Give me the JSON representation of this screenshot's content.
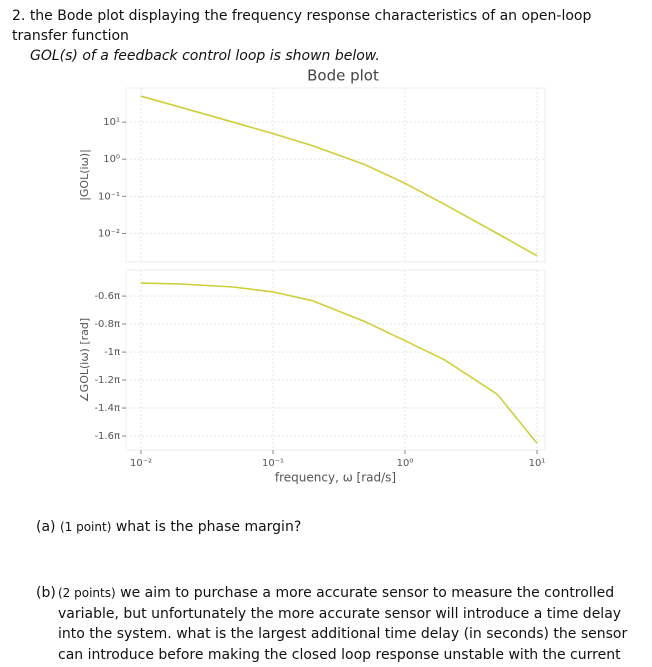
{
  "question": {
    "number": "2.",
    "text": "the Bode plot displaying the frequency response characteristics of an open-loop transfer function",
    "text2": "GOL(s) of a feedback control loop is shown below."
  },
  "chart_data": [
    {
      "type": "line",
      "title": "Bode plot",
      "ylabel": "|GOL(iω)|",
      "xlog": true,
      "ylog": true,
      "grid": true,
      "color": "#cfcf3a",
      "x": [
        0.01,
        0.02,
        0.05,
        0.1,
        0.2,
        0.5,
        1,
        2,
        5,
        10
      ],
      "values": [
        50.0,
        25.0,
        9.95,
        4.9,
        2.32,
        0.707,
        0.224,
        0.0606,
        0.00995,
        0.0025
      ],
      "xlim": [
        0.0077,
        11.5
      ],
      "ylim": [
        0.0017,
        83
      ],
      "yticks": [
        {
          "value": 10,
          "label": "10¹"
        },
        {
          "value": 1,
          "label": "10⁰"
        },
        {
          "value": 0.1,
          "label": "10⁻¹"
        },
        {
          "value": 0.01,
          "label": "10⁻²"
        }
      ]
    },
    {
      "type": "line",
      "ylabel": "∠GOL(iω) [rad]",
      "xlabel": "frequency, ω [rad/s]",
      "xlog": true,
      "grid": true,
      "color": "#cfcf3a",
      "x": [
        0.01,
        0.02,
        0.05,
        0.1,
        0.2,
        0.5,
        1,
        2,
        5,
        10
      ],
      "values": [
        -1.593,
        -1.615,
        -1.681,
        -1.791,
        -1.992,
        -2.46,
        -2.887,
        -3.318,
        -4.09,
        -5.19
      ],
      "xlim": [
        0.0077,
        11.5
      ],
      "ylim": [
        -5.34,
        -1.3
      ],
      "xticks": [
        {
          "value": 0.01,
          "label": "10⁻²"
        },
        {
          "value": 0.1,
          "label": "10⁻¹"
        },
        {
          "value": 1,
          "label": "10⁰"
        },
        {
          "value": 10,
          "label": "10¹"
        }
      ],
      "yticks": [
        {
          "value": -1.885,
          "label": "-0.6π"
        },
        {
          "value": -2.513,
          "label": "-0.8π"
        },
        {
          "value": -3.142,
          "label": "-1π"
        },
        {
          "value": -3.77,
          "label": "-1.2π"
        },
        {
          "value": -4.398,
          "label": "-1.4π"
        },
        {
          "value": -5.027,
          "label": "-1.6π"
        }
      ]
    }
  ],
  "parts": [
    {
      "label": "(a)",
      "points": "(1 point)",
      "text": "what is the phase margin?"
    },
    {
      "label": "(b)",
      "points": "(2 points)",
      "text": "we aim to purchase a more accurate sensor to measure the controlled variable, but unfortunately the more accurate sensor will introduce a time delay into the system. what is the largest additional time delay (in seconds) the sensor can introduce before making the closed loop response unstable with the current controller settings?"
    }
  ]
}
